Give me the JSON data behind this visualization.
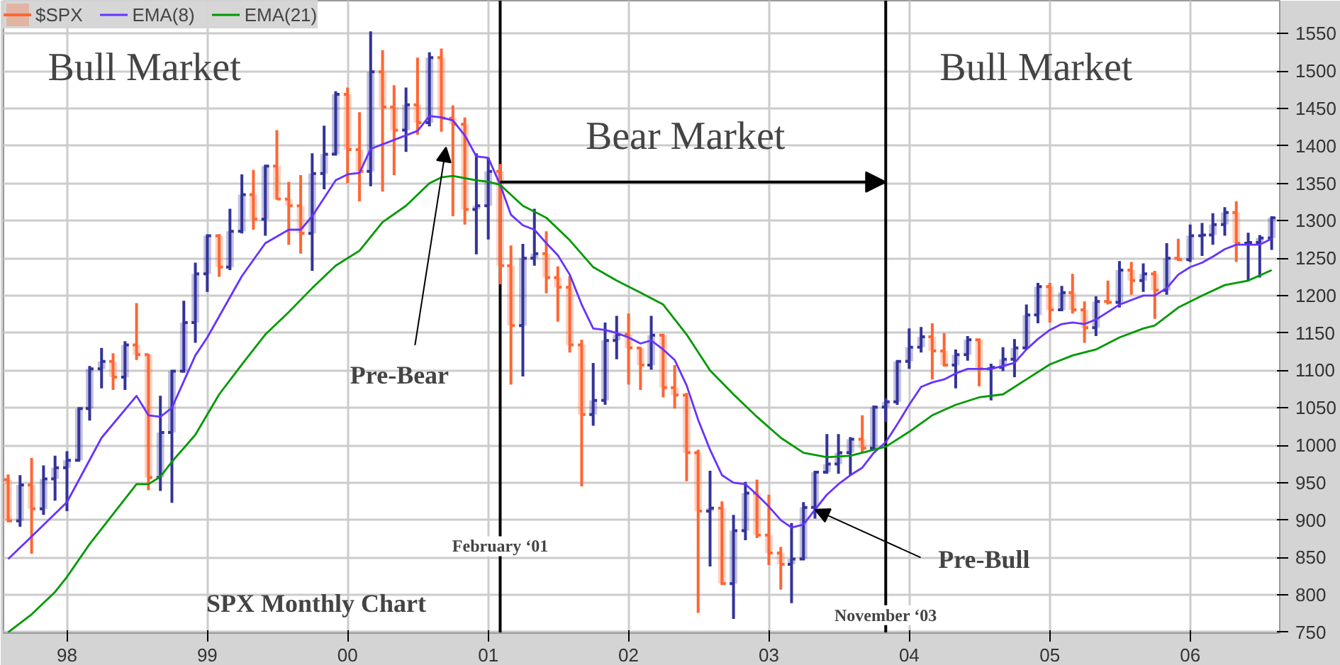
{
  "chart_data": {
    "type": "candlestick",
    "series": [
      {
        "name": "$SPX",
        "x": [
          "1997-08",
          "1997-09",
          "1997-10",
          "1997-11",
          "1997-12",
          "1998-01",
          "1998-02",
          "1998-03",
          "1998-04",
          "1998-05",
          "1998-06",
          "1998-07",
          "1998-08",
          "1998-09",
          "1998-10",
          "1998-11",
          "1998-12",
          "1999-01",
          "1999-02",
          "1999-03",
          "1999-04",
          "1999-05",
          "1999-06",
          "1999-07",
          "1999-08",
          "1999-09",
          "1999-10",
          "1999-11",
          "1999-12",
          "2000-01",
          "2000-02",
          "2000-03",
          "2000-04",
          "2000-05",
          "2000-06",
          "2000-07",
          "2000-08",
          "2000-09",
          "2000-10",
          "2000-11",
          "2000-12",
          "2001-01",
          "2001-02",
          "2001-03",
          "2001-04",
          "2001-05",
          "2001-06",
          "2001-07",
          "2001-08",
          "2001-09",
          "2001-10",
          "2001-11",
          "2001-12",
          "2002-01",
          "2002-02",
          "2002-03",
          "2002-04",
          "2002-05",
          "2002-06",
          "2002-07",
          "2002-08",
          "2002-09",
          "2002-10",
          "2002-11",
          "2002-12",
          "2003-01",
          "2003-02",
          "2003-03",
          "2003-04",
          "2003-05",
          "2003-06",
          "2003-07",
          "2003-08",
          "2003-09",
          "2003-10",
          "2003-11",
          "2003-12",
          "2004-01",
          "2004-02",
          "2004-03",
          "2004-04",
          "2004-05",
          "2004-06",
          "2004-07",
          "2004-08",
          "2004-09",
          "2004-10",
          "2004-11",
          "2004-12",
          "2005-01",
          "2005-02",
          "2005-03",
          "2005-04",
          "2005-05",
          "2005-06",
          "2005-07",
          "2005-08",
          "2005-09",
          "2005-10",
          "2005-11",
          "2005-12",
          "2006-01",
          "2006-02",
          "2006-03",
          "2006-04",
          "2006-05",
          "2006-06",
          "2006-07",
          "2006-08"
        ],
        "ohlc": [
          [
            954,
            961,
            897,
            899
          ],
          [
            899,
            960,
            891,
            947
          ],
          [
            947,
            983,
            855,
            915
          ],
          [
            915,
            973,
            907,
            955
          ],
          [
            955,
            986,
            926,
            970
          ],
          [
            970,
            992,
            912,
            980
          ],
          [
            980,
            1051,
            979,
            1049
          ],
          [
            1049,
            1106,
            1033,
            1102
          ],
          [
            1102,
            1130,
            1076,
            1112
          ],
          [
            1112,
            1123,
            1074,
            1091
          ],
          [
            1091,
            1139,
            1074,
            1134
          ],
          [
            1134,
            1190,
            1114,
            1121
          ],
          [
            1121,
            1122,
            940,
            957
          ],
          [
            957,
            1066,
            939,
            1017
          ],
          [
            1017,
            1099,
            923,
            1099
          ],
          [
            1099,
            1193,
            1097,
            1164
          ],
          [
            1164,
            1244,
            1137,
            1229
          ],
          [
            1229,
            1280,
            1205,
            1280
          ],
          [
            1280,
            1282,
            1225,
            1238
          ],
          [
            1238,
            1316,
            1234,
            1286
          ],
          [
            1286,
            1362,
            1283,
            1335
          ],
          [
            1335,
            1368,
            1288,
            1302
          ],
          [
            1302,
            1373,
            1280,
            1373
          ],
          [
            1373,
            1421,
            1328,
            1329
          ],
          [
            1329,
            1352,
            1268,
            1320
          ],
          [
            1320,
            1361,
            1256,
            1283
          ],
          [
            1283,
            1390,
            1233,
            1363
          ],
          [
            1363,
            1427,
            1342,
            1389
          ],
          [
            1389,
            1473,
            1387,
            1469
          ],
          [
            1469,
            1478,
            1350,
            1395
          ],
          [
            1395,
            1445,
            1326,
            1366
          ],
          [
            1366,
            1553,
            1346,
            1499
          ],
          [
            1499,
            1528,
            1339,
            1452
          ],
          [
            1452,
            1481,
            1361,
            1421
          ],
          [
            1421,
            1478,
            1392,
            1455
          ],
          [
            1455,
            1518,
            1415,
            1431
          ],
          [
            1431,
            1525,
            1426,
            1518
          ],
          [
            1518,
            1530,
            1419,
            1437
          ],
          [
            1437,
            1454,
            1306,
            1429
          ],
          [
            1429,
            1438,
            1295,
            1315
          ],
          [
            1315,
            1390,
            1255,
            1320
          ],
          [
            1320,
            1384,
            1275,
            1366
          ],
          [
            1366,
            1376,
            1215,
            1240
          ],
          [
            1240,
            1267,
            1081,
            1160
          ],
          [
            1160,
            1269,
            1092,
            1250
          ],
          [
            1250,
            1316,
            1240,
            1256
          ],
          [
            1256,
            1286,
            1203,
            1224
          ],
          [
            1224,
            1239,
            1165,
            1211
          ],
          [
            1211,
            1226,
            1124,
            1134
          ],
          [
            1134,
            1141,
            945,
            1041
          ],
          [
            1041,
            1110,
            1026,
            1060
          ],
          [
            1060,
            1164,
            1054,
            1140
          ],
          [
            1140,
            1173,
            1115,
            1148
          ],
          [
            1148,
            1176,
            1081,
            1130
          ],
          [
            1130,
            1131,
            1074,
            1107
          ],
          [
            1107,
            1173,
            1101,
            1147
          ],
          [
            1147,
            1147,
            1064,
            1077
          ],
          [
            1077,
            1107,
            1049,
            1067
          ],
          [
            1067,
            1070,
            952,
            990
          ],
          [
            990,
            994,
            776,
            912
          ],
          [
            912,
            966,
            838,
            916
          ],
          [
            916,
            925,
            815,
            815
          ],
          [
            815,
            907,
            768,
            886
          ],
          [
            886,
            951,
            873,
            936
          ],
          [
            936,
            954,
            876,
            880
          ],
          [
            880,
            934,
            840,
            856
          ],
          [
            856,
            864,
            807,
            841
          ],
          [
            841,
            896,
            789,
            848
          ],
          [
            848,
            924,
            847,
            917
          ],
          [
            917,
            965,
            902,
            964
          ],
          [
            964,
            1015,
            962,
            975
          ],
          [
            975,
            1015,
            962,
            990
          ],
          [
            990,
            1011,
            960,
            1008
          ],
          [
            1008,
            1040,
            990,
            996
          ],
          [
            996,
            1053,
            996,
            1051
          ],
          [
            1051,
            1063,
            1031,
            1058
          ],
          [
            1058,
            1112,
            1054,
            1112
          ],
          [
            1112,
            1156,
            1102,
            1131
          ],
          [
            1131,
            1158,
            1124,
            1145
          ],
          [
            1145,
            1163,
            1088,
            1126
          ],
          [
            1126,
            1150,
            1107,
            1107
          ],
          [
            1107,
            1128,
            1076,
            1121
          ],
          [
            1121,
            1146,
            1113,
            1141
          ],
          [
            1141,
            1141,
            1079,
            1102
          ],
          [
            1102,
            1109,
            1060,
            1104
          ],
          [
            1104,
            1131,
            1099,
            1115
          ],
          [
            1115,
            1142,
            1091,
            1130
          ],
          [
            1130,
            1188,
            1128,
            1174
          ],
          [
            1174,
            1217,
            1163,
            1212
          ],
          [
            1212,
            1217,
            1164,
            1181
          ],
          [
            1181,
            1213,
            1180,
            1204
          ],
          [
            1204,
            1229,
            1176,
            1181
          ],
          [
            1181,
            1192,
            1137,
            1157
          ],
          [
            1157,
            1199,
            1146,
            1192
          ],
          [
            1192,
            1220,
            1188,
            1191
          ],
          [
            1191,
            1246,
            1184,
            1234
          ],
          [
            1234,
            1245,
            1201,
            1220
          ],
          [
            1220,
            1243,
            1205,
            1229
          ],
          [
            1229,
            1233,
            1169,
            1207
          ],
          [
            1207,
            1270,
            1201,
            1250
          ],
          [
            1250,
            1276,
            1246,
            1248
          ],
          [
            1248,
            1295,
            1245,
            1280
          ],
          [
            1280,
            1297,
            1253,
            1281
          ],
          [
            1281,
            1310,
            1268,
            1295
          ],
          [
            1295,
            1318,
            1280,
            1311
          ],
          [
            1311,
            1326,
            1245,
            1270
          ],
          [
            1270,
            1284,
            1219,
            1271
          ],
          [
            1271,
            1281,
            1224,
            1277
          ],
          [
            1277,
            1306,
            1261,
            1304
          ]
        ],
        "colors": [
          "#ff6633",
          "#333399",
          "#ff6633",
          "#333399",
          "#333399",
          "#333399",
          "#333399",
          "#333399",
          "#333399",
          "#ff6633",
          "#333399",
          "#ff6633",
          "#ff6633",
          "#333399",
          "#333399",
          "#333399",
          "#333399",
          "#333399",
          "#ff6633",
          "#333399",
          "#333399",
          "#ff6633",
          "#333399",
          "#ff6633",
          "#ff6633",
          "#ff6633",
          "#333399",
          "#333399",
          "#333399",
          "#ff6633",
          "#ff6633",
          "#333399",
          "#ff6633",
          "#ff6633",
          "#333399",
          "#ff6633",
          "#333399",
          "#ff6633",
          "#ff6633",
          "#ff6633",
          "#333399",
          "#333399",
          "#ff6633",
          "#ff6633",
          "#333399",
          "#333399",
          "#ff6633",
          "#ff6633",
          "#ff6633",
          "#ff6633",
          "#333399",
          "#333399",
          "#333399",
          "#ff6633",
          "#ff6633",
          "#333399",
          "#ff6633",
          "#ff6633",
          "#ff6633",
          "#ff6633",
          "#333399",
          "#ff6633",
          "#333399",
          "#333399",
          "#ff6633",
          "#ff6633",
          "#ff6633",
          "#333399",
          "#333399",
          "#333399",
          "#333399",
          "#333399",
          "#333399",
          "#ff6633",
          "#333399",
          "#333399",
          "#333399",
          "#333399",
          "#333399",
          "#ff6633",
          "#ff6633",
          "#333399",
          "#333399",
          "#ff6633",
          "#333399",
          "#333399",
          "#333399",
          "#333399",
          "#333399",
          "#ff6633",
          "#333399",
          "#ff6633",
          "#ff6633",
          "#333399",
          "#ff6633",
          "#333399",
          "#ff6633",
          "#333399",
          "#ff6633",
          "#333399",
          "#ff6633",
          "#333399",
          "#333399",
          "#333399",
          "#333399",
          "#ff6633",
          "#333399",
          "#333399",
          "#333399"
        ]
      },
      {
        "name": "EMA(8)",
        "type": "line",
        "color": "#6633ff",
        "x": [
          "1997-08",
          "1997-10",
          "1998-01",
          "1998-04",
          "1998-07",
          "1998-08",
          "1998-09",
          "1998-10",
          "1998-12",
          "1999-01",
          "1999-04",
          "1999-06",
          "1999-08",
          "1999-09",
          "1999-10",
          "1999-12",
          "2000-01",
          "2000-02",
          "2000-03",
          "2000-05",
          "2000-07",
          "2000-08",
          "2000-09",
          "2000-10",
          "2000-11",
          "2000-12",
          "2001-01",
          "2001-02",
          "2001-03",
          "2001-04",
          "2001-05",
          "2001-06",
          "2001-07",
          "2001-08",
          "2001-09",
          "2001-10",
          "2001-11",
          "2001-12",
          "2002-01",
          "2002-02",
          "2002-03",
          "2002-04",
          "2002-05",
          "2002-06",
          "2002-07",
          "2002-08",
          "2002-09",
          "2002-10",
          "2002-11",
          "2002-12",
          "2003-01",
          "2003-02",
          "2003-03",
          "2003-04",
          "2003-05",
          "2003-06",
          "2003-07",
          "2003-08",
          "2003-09",
          "2003-10",
          "2003-11",
          "2003-12",
          "2004-01",
          "2004-02",
          "2004-03",
          "2004-04",
          "2004-05",
          "2004-06",
          "2004-07",
          "2004-08",
          "2004-09",
          "2004-10",
          "2004-11",
          "2004-12",
          "2005-01",
          "2005-02",
          "2005-03",
          "2005-04",
          "2005-05",
          "2005-06",
          "2005-07",
          "2005-08",
          "2005-09",
          "2005-10",
          "2005-11",
          "2005-12",
          "2006-01",
          "2006-02",
          "2006-03",
          "2006-04",
          "2006-05",
          "2006-06",
          "2006-07",
          "2006-08"
        ],
        "values": [
          848,
          878,
          924,
          1010,
          1066,
          1040,
          1038,
          1050,
          1120,
          1144,
          1226,
          1270,
          1288,
          1288,
          1306,
          1354,
          1362,
          1364,
          1396,
          1408,
          1420,
          1440,
          1438,
          1434,
          1414,
          1386,
          1384,
          1348,
          1308,
          1294,
          1288,
          1270,
          1254,
          1228,
          1188,
          1156,
          1154,
          1150,
          1144,
          1136,
          1140,
          1128,
          1114,
          1080,
          1034,
          994,
          960,
          950,
          948,
          934,
          918,
          900,
          890,
          894,
          914,
          934,
          948,
          960,
          970,
          990,
          1004,
          1028,
          1054,
          1078,
          1084,
          1088,
          1096,
          1102,
          1102,
          1102,
          1106,
          1110,
          1128,
          1142,
          1154,
          1162,
          1164,
          1162,
          1168,
          1178,
          1188,
          1194,
          1200,
          1200,
          1210,
          1228,
          1238,
          1244,
          1252,
          1262,
          1268,
          1268,
          1268,
          1276
        ]
      },
      {
        "name": "EMA(21)",
        "type": "line",
        "color": "#009900",
        "x": [
          "1997-08",
          "1997-10",
          "1997-12",
          "1998-01",
          "1998-03",
          "1998-05",
          "1998-07",
          "1998-08",
          "1998-09",
          "1998-10",
          "1998-12",
          "1999-02",
          "1999-04",
          "1999-06",
          "1999-08",
          "1999-10",
          "1999-12",
          "2000-02",
          "2000-04",
          "2000-06",
          "2000-08",
          "2000-09",
          "2000-10",
          "2000-12",
          "2001-01",
          "2001-02",
          "2001-04",
          "2001-06",
          "2001-08",
          "2001-10",
          "2001-12",
          "2002-02",
          "2002-04",
          "2002-06",
          "2002-08",
          "2002-10",
          "2002-12",
          "2003-02",
          "2003-04",
          "2003-06",
          "2003-08",
          "2003-10",
          "2003-11",
          "2004-01",
          "2004-03",
          "2004-05",
          "2004-07",
          "2004-09",
          "2004-11",
          "2005-01",
          "2005-03",
          "2005-05",
          "2005-07",
          "2005-09",
          "2005-10",
          "2005-12",
          "2006-02",
          "2006-04",
          "2006-06",
          "2006-08"
        ],
        "values": [
          750,
          774,
          804,
          824,
          868,
          908,
          948,
          948,
          958,
          978,
          1014,
          1068,
          1108,
          1148,
          1178,
          1210,
          1240,
          1260,
          1298,
          1320,
          1350,
          1358,
          1360,
          1354,
          1352,
          1348,
          1320,
          1304,
          1274,
          1238,
          1220,
          1204,
          1188,
          1148,
          1100,
          1068,
          1038,
          1010,
          990,
          984,
          986,
          994,
          998,
          1018,
          1040,
          1054,
          1064,
          1068,
          1088,
          1108,
          1120,
          1128,
          1144,
          1156,
          1160,
          1184,
          1200,
          1214,
          1220,
          1234
        ]
      }
    ],
    "xlim": [
      "1997-07-20",
      "2006-08-22"
    ],
    "xticks": [
      {
        "value": "1998-01",
        "label": "98"
      },
      {
        "value": "1999-01",
        "label": "99"
      },
      {
        "value": "2000-01",
        "label": "00"
      },
      {
        "value": "2001-01",
        "label": "01"
      },
      {
        "value": "2002-01",
        "label": "02"
      },
      {
        "value": "2003-01",
        "label": "03"
      },
      {
        "value": "2004-01",
        "label": "04"
      },
      {
        "value": "2005-01",
        "label": "05"
      },
      {
        "value": "2006-01",
        "label": "06"
      }
    ],
    "ylim": [
      749,
      1594
    ],
    "yticks": [
      750,
      800,
      850,
      900,
      950,
      1000,
      1050,
      1100,
      1150,
      1200,
      1250,
      1300,
      1350,
      1400,
      1450,
      1500,
      1550
    ],
    "grid": true,
    "legend": "top",
    "ref_lines": [
      {
        "axis": "x",
        "value": "2001-02",
        "label": "February ‘01",
        "color": "#000000"
      },
      {
        "axis": "x",
        "value": "2003-11",
        "label": "November ‘03",
        "color": "#000000"
      }
    ],
    "annotations": [
      "Bull Market",
      "Bull Market",
      "Bear Market",
      "SPX Monthly Chart",
      {
        "text": "Pre-Bear",
        "x": "2000-09-13",
        "y": 1398
      },
      {
        "text": "Pre-Bull",
        "x": "2003-05",
        "y": 914
      }
    ]
  }
}
